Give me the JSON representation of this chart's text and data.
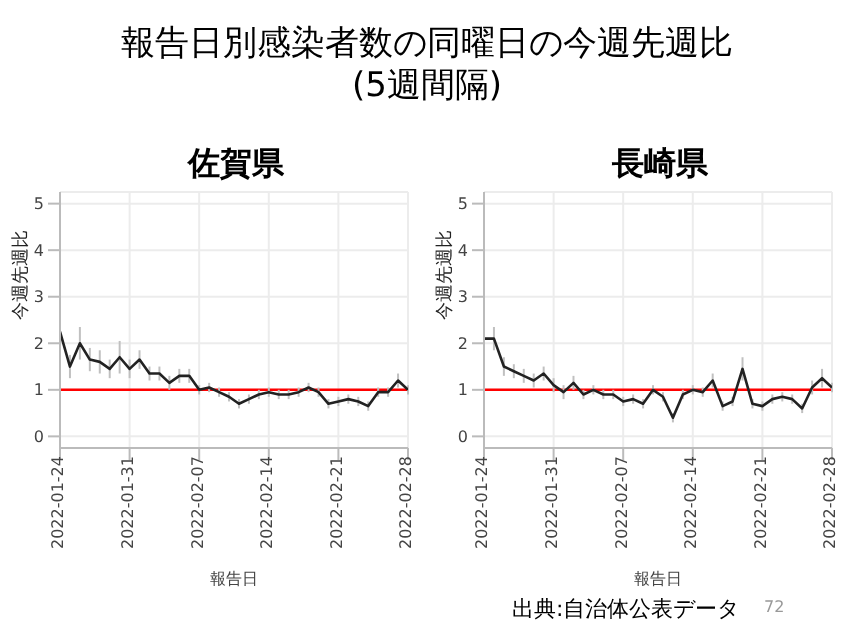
{
  "chart_data": [
    {
      "type": "line",
      "title": "佐賀県",
      "xlabel": "報告日",
      "ylabel": "今週先週比",
      "annotations": [
        "報告日別感染者数の同曜日の今週先週比\n(5週間隔)"
      ],
      "x": [
        "2022-01-24",
        "2022-01-25",
        "2022-01-26",
        "2022-01-27",
        "2022-01-28",
        "2022-01-29",
        "2022-01-30",
        "2022-01-31",
        "2022-02-01",
        "2022-02-02",
        "2022-02-03",
        "2022-02-04",
        "2022-02-05",
        "2022-02-06",
        "2022-02-07",
        "2022-02-08",
        "2022-02-09",
        "2022-02-10",
        "2022-02-11",
        "2022-02-12",
        "2022-02-13",
        "2022-02-14",
        "2022-02-15",
        "2022-02-16",
        "2022-02-17",
        "2022-02-18",
        "2022-02-19",
        "2022-02-20",
        "2022-02-21",
        "2022-02-22",
        "2022-02-23",
        "2022-02-24",
        "2022-02-25",
        "2022-02-26",
        "2022-02-27",
        "2022-02-28"
      ],
      "series": [
        {
          "color": "#222222",
          "values": [
            2.25,
            1.5,
            2.0,
            1.65,
            1.6,
            1.45,
            1.7,
            1.45,
            1.65,
            1.35,
            1.35,
            1.15,
            1.3,
            1.3,
            1.0,
            1.05,
            0.95,
            0.85,
            0.7,
            0.8,
            0.9,
            0.95,
            0.9,
            0.9,
            0.95,
            1.05,
            0.95,
            0.7,
            0.75,
            0.8,
            0.75,
            0.65,
            0.95,
            0.95,
            1.2,
            1.0
          ],
          "errors": [
            0.25,
            0.25,
            0.35,
            0.25,
            0.25,
            0.2,
            0.35,
            0.2,
            0.2,
            0.15,
            0.15,
            0.15,
            0.15,
            0.15,
            0.1,
            0.1,
            0.1,
            0.1,
            0.1,
            0.1,
            0.1,
            0.1,
            0.1,
            0.1,
            0.1,
            0.1,
            0.1,
            0.1,
            0.1,
            0.1,
            0.1,
            0.1,
            0.1,
            0.1,
            0.15,
            0.1
          ]
        }
      ],
      "xlim": [
        "2022-01-24",
        "2022-02-28"
      ],
      "xticks": [
        {
          "value": "2022-01-24",
          "label": "2022-01-24"
        },
        {
          "value": "2022-01-31",
          "label": "2022-01-31"
        },
        {
          "value": "2022-02-07",
          "label": "2022-02-07"
        },
        {
          "value": "2022-02-14",
          "label": "2022-02-14"
        },
        {
          "value": "2022-02-21",
          "label": "2022-02-21"
        },
        {
          "value": "2022-02-28",
          "label": "2022-02-28"
        }
      ],
      "ylim": [
        -0.25,
        5.25
      ],
      "yticks": [
        0,
        1,
        2,
        3,
        4,
        5
      ],
      "grid": true,
      "marker": "none",
      "line_style": "solid",
      "ref_lines": [
        {
          "axis": "y",
          "value": 1,
          "color": "#ff0000"
        }
      ]
    },
    {
      "type": "line",
      "title": "長崎県",
      "xlabel": "報告日",
      "ylabel": "今週先週比",
      "annotations": [
        "出典:自治体公表データ",
        "72"
      ],
      "x": [
        "2022-01-24",
        "2022-01-25",
        "2022-01-26",
        "2022-01-27",
        "2022-01-28",
        "2022-01-29",
        "2022-01-30",
        "2022-01-31",
        "2022-02-01",
        "2022-02-02",
        "2022-02-03",
        "2022-02-04",
        "2022-02-05",
        "2022-02-06",
        "2022-02-07",
        "2022-02-08",
        "2022-02-09",
        "2022-02-10",
        "2022-02-11",
        "2022-02-12",
        "2022-02-13",
        "2022-02-14",
        "2022-02-15",
        "2022-02-16",
        "2022-02-17",
        "2022-02-18",
        "2022-02-19",
        "2022-02-20",
        "2022-02-21",
        "2022-02-22",
        "2022-02-23",
        "2022-02-24",
        "2022-02-25",
        "2022-02-26",
        "2022-02-27",
        "2022-02-28"
      ],
      "series": [
        {
          "color": "#222222",
          "values": [
            2.1,
            2.1,
            1.5,
            1.4,
            1.3,
            1.2,
            1.35,
            1.1,
            0.95,
            1.15,
            0.9,
            1.0,
            0.9,
            0.9,
            0.75,
            0.8,
            0.7,
            1.0,
            0.85,
            0.4,
            0.9,
            1.0,
            0.95,
            1.2,
            0.65,
            0.75,
            1.45,
            0.7,
            0.65,
            0.8,
            0.85,
            0.8,
            0.6,
            1.05,
            1.25,
            1.05
          ],
          "errors": [
            0.3,
            0.25,
            0.2,
            0.15,
            0.15,
            0.15,
            0.15,
            0.15,
            0.15,
            0.15,
            0.1,
            0.1,
            0.1,
            0.1,
            0.1,
            0.1,
            0.1,
            0.1,
            0.1,
            0.1,
            0.1,
            0.1,
            0.1,
            0.15,
            0.1,
            0.1,
            0.25,
            0.1,
            0.1,
            0.1,
            0.1,
            0.1,
            0.1,
            0.15,
            0.2,
            0.1
          ]
        }
      ],
      "xlim": [
        "2022-01-24",
        "2022-02-28"
      ],
      "xticks": [
        {
          "value": "2022-01-24",
          "label": "2022-01-24"
        },
        {
          "value": "2022-01-31",
          "label": "2022-01-31"
        },
        {
          "value": "2022-02-07",
          "label": "2022-02-07"
        },
        {
          "value": "2022-02-14",
          "label": "2022-02-14"
        },
        {
          "value": "2022-02-21",
          "label": "2022-02-21"
        },
        {
          "value": "2022-02-28",
          "label": "2022-02-28"
        }
      ],
      "ylim": [
        -0.25,
        5.25
      ],
      "yticks": [
        0,
        1,
        2,
        3,
        4,
        5
      ],
      "grid": true,
      "marker": "none",
      "line_style": "solid",
      "ref_lines": [
        {
          "axis": "y",
          "value": 1,
          "color": "#ff0000"
        }
      ]
    }
  ]
}
